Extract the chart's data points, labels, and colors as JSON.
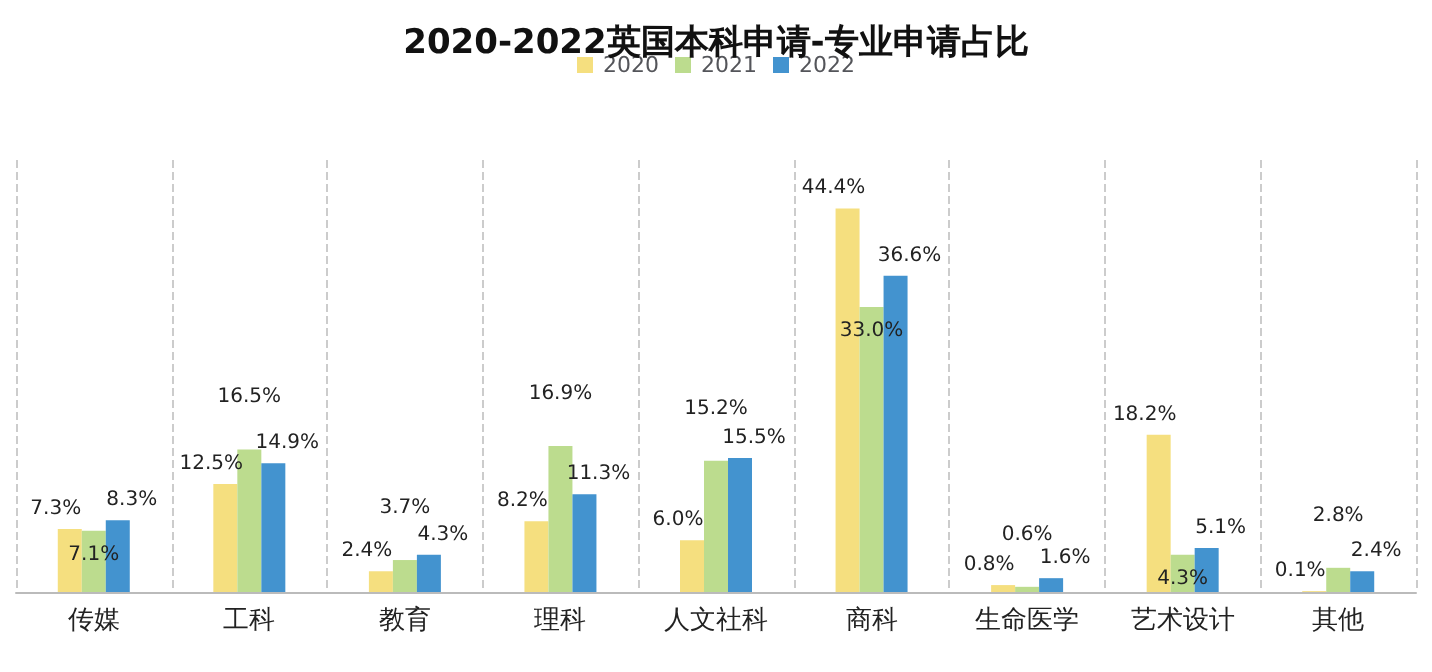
{
  "chart_data": {
    "type": "bar",
    "title": "2020-2022英国本科申请-专业申请占比",
    "categories": [
      "传媒",
      "工科",
      "教育",
      "理科",
      "人文社科",
      "商科",
      "生命医学",
      "艺术设计",
      "其他"
    ],
    "series": [
      {
        "name": "2020",
        "color": "#f5df7f",
        "values": [
          7.3,
          12.5,
          2.4,
          8.2,
          6.0,
          44.4,
          0.8,
          18.2,
          0.1
        ],
        "value_labels": [
          "7.3%",
          "12.5%",
          "2.4%",
          "8.2%",
          "6.0%",
          "44.4%",
          "0.8%",
          "18.2%",
          "0.1%"
        ]
      },
      {
        "name": "2021",
        "color": "#bcdc8e",
        "values": [
          7.1,
          16.5,
          3.7,
          16.9,
          15.2,
          33.0,
          0.6,
          4.3,
          2.8
        ],
        "value_labels": [
          "7.1%",
          "16.5%",
          "3.7%",
          "16.9%",
          "15.2%",
          "33.0%",
          "0.6%",
          "4.3%",
          "2.8%"
        ]
      },
      {
        "name": "2022",
        "color": "#4393cf",
        "values": [
          8.3,
          14.9,
          4.3,
          11.3,
          15.5,
          36.6,
          1.6,
          5.1,
          2.4
        ],
        "value_labels": [
          "8.3%",
          "14.9%",
          "4.3%",
          "11.3%",
          "15.5%",
          "36.6%",
          "1.6%",
          "5.1%",
          "2.4%"
        ]
      }
    ],
    "grid": "x",
    "legend": "top"
  }
}
